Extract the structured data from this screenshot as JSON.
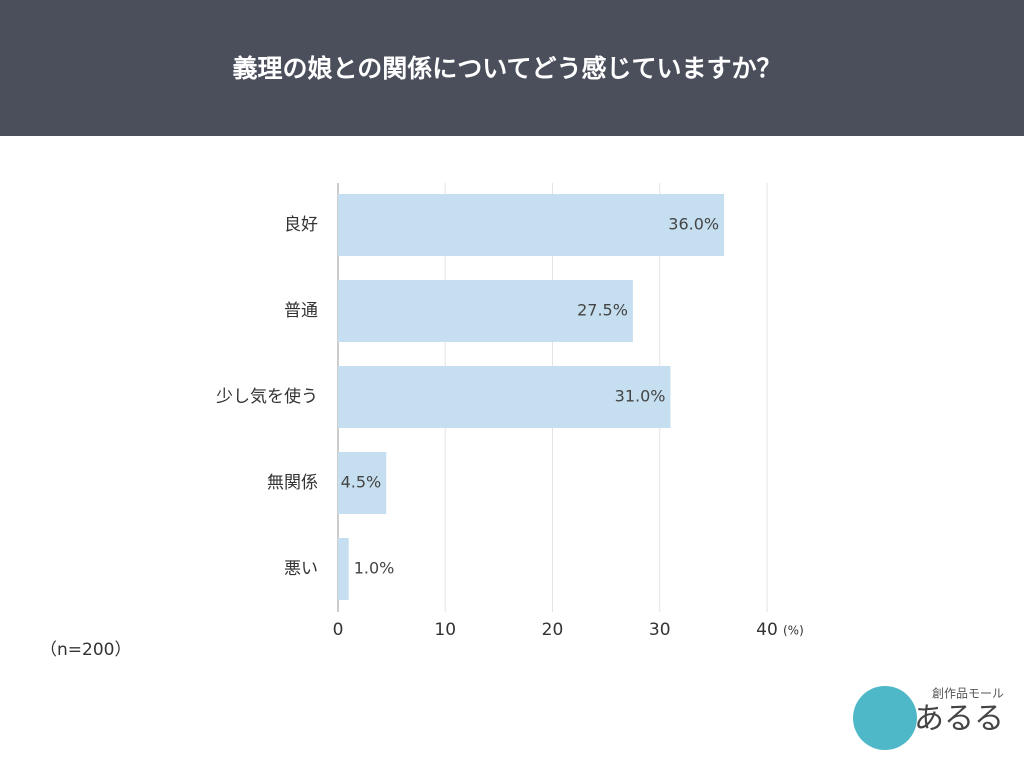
{
  "chart_data": {
    "type": "bar",
    "orientation": "horizontal",
    "title": "義理の娘との関係についてどう感じていますか？",
    "categories": [
      "良好",
      "普通",
      "少し気を使う",
      "無関係",
      "悪い"
    ],
    "values": [
      36.0,
      27.5,
      31.0,
      4.5,
      1.0
    ],
    "value_labels": [
      "36.0%",
      "27.5%",
      "31.0%",
      "4.5%",
      "1.0%"
    ],
    "color": "#c6dff0",
    "xlim": [
      0,
      40
    ],
    "xticks": [
      0,
      10,
      20,
      30,
      40
    ],
    "x_unit": "(%)",
    "grid": true,
    "note": "（n=200）"
  },
  "logo": {
    "tagline": "創作品モール",
    "name": "あるる"
  }
}
